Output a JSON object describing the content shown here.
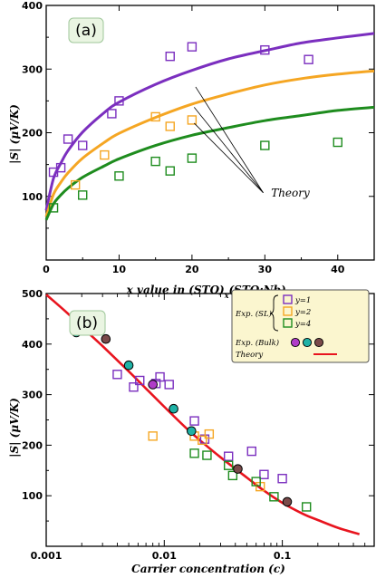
{
  "chart_data": [
    {
      "type": "scatter",
      "panel_label": "(a)",
      "xlabel": "x value in (STO)",
      "xlabel_sub_x": "x",
      "xlabel_mid": "(STO:Nb)",
      "xlabel_sub_y": "y",
      "ylabel": "|S| (μV/K)",
      "xlim": [
        0,
        45
      ],
      "ylim": [
        0,
        400
      ],
      "xticks": [
        "0",
        "10",
        "20",
        "30",
        "40"
      ],
      "xtick_values": [
        0,
        10,
        20,
        30,
        40
      ],
      "yticks": [
        "100",
        "200",
        "300",
        "400"
      ],
      "ytick_values": [
        100,
        200,
        300,
        400
      ],
      "annotation": "Theory",
      "annotation_pos": [
        33.5,
        100
      ],
      "annotation_targets": [
        [
          20.3,
          215
        ],
        [
          20.3,
          240
        ],
        [
          20.5,
          272
        ]
      ],
      "grid": false,
      "series": [
        {
          "color": "#7b2fbf",
          "points": [
            [
              1,
              138
            ],
            [
              2,
              145
            ],
            [
              3,
              190
            ],
            [
              5,
              180
            ],
            [
              9,
              230
            ],
            [
              10,
              250
            ],
            [
              17,
              320
            ],
            [
              20,
              335
            ],
            [
              30,
              330
            ],
            [
              36,
              315
            ]
          ],
          "curve": [
            [
              0,
              78
            ],
            [
              1,
              128
            ],
            [
              2,
              152
            ],
            [
              3,
              172
            ],
            [
              5,
              201
            ],
            [
              8,
              232
            ],
            [
              10,
              248
            ],
            [
              15,
              276
            ],
            [
              20,
              298
            ],
            [
              25,
              316
            ],
            [
              30,
              329
            ],
            [
              35,
              341
            ],
            [
              40,
              349
            ],
            [
              45,
              356
            ]
          ]
        },
        {
          "color": "#f5a623",
          "points": [
            [
              4,
              118
            ],
            [
              8,
              165
            ],
            [
              15,
              225
            ],
            [
              17,
              210
            ],
            [
              20,
              220
            ]
          ],
          "curve": [
            [
              0,
              68
            ],
            [
              1,
              103
            ],
            [
              2,
              122
            ],
            [
              3,
              137
            ],
            [
              5,
              160
            ],
            [
              8,
              185
            ],
            [
              10,
              199
            ],
            [
              15,
              224
            ],
            [
              20,
              245
            ],
            [
              25,
              261
            ],
            [
              30,
              275
            ],
            [
              35,
              285
            ],
            [
              40,
              292
            ],
            [
              45,
              297
            ]
          ]
        },
        {
          "color": "#1e8c1e",
          "points": [
            [
              1,
              82
            ],
            [
              5,
              102
            ],
            [
              10,
              132
            ],
            [
              15,
              155
            ],
            [
              17,
              140
            ],
            [
              20,
              160
            ],
            [
              30,
              180
            ],
            [
              40,
              185
            ]
          ],
          "curve": [
            [
              0,
              63
            ],
            [
              1,
              88
            ],
            [
              2,
              102
            ],
            [
              3,
              113
            ],
            [
              5,
              130
            ],
            [
              8,
              148
            ],
            [
              10,
              159
            ],
            [
              15,
              180
            ],
            [
              20,
              196
            ],
            [
              25,
              208
            ],
            [
              30,
              219
            ],
            [
              35,
              227
            ],
            [
              40,
              235
            ],
            [
              45,
              240
            ]
          ]
        }
      ]
    },
    {
      "type": "scatter",
      "panel_label": "(b)",
      "xscale": "log",
      "xlabel": "Carrier concentration (c)",
      "ylabel": "|S| (μV/K)",
      "xlim": [
        0.001,
        0.6
      ],
      "ylim": [
        0,
        500
      ],
      "xticks": [
        "0.001",
        "0.01",
        "0.1"
      ],
      "xtick_values": [
        0.001,
        0.01,
        0.1
      ],
      "yticks": [
        "100",
        "200",
        "300",
        "400",
        "500"
      ],
      "ytick_values": [
        100,
        200,
        300,
        400,
        500
      ],
      "grid": false,
      "legend": {
        "position": "top-right",
        "sl_label": "Exp. (SL)",
        "bulk_label": "Exp. (Bulk)",
        "theory_label": "Theory",
        "y_entries": [
          "y=1",
          "y=2",
          "y=4"
        ]
      },
      "sl_series": [
        {
          "name": "y=1",
          "color": "#7b2fbf",
          "points": [
            [
              0.004,
              340
            ],
            [
              0.0055,
              315
            ],
            [
              0.0062,
              328
            ],
            [
              0.0085,
              322
            ],
            [
              0.0092,
              335
            ],
            [
              0.011,
              320
            ],
            [
              0.018,
              248
            ],
            [
              0.022,
              212
            ],
            [
              0.035,
              178
            ],
            [
              0.055,
              188
            ],
            [
              0.07,
              142
            ],
            [
              0.1,
              134
            ]
          ]
        },
        {
          "name": "y=2",
          "color": "#f5a623",
          "points": [
            [
              0.008,
              218
            ],
            [
              0.018,
              218
            ],
            [
              0.021,
              210
            ],
            [
              0.024,
              222
            ],
            [
              0.065,
              118
            ]
          ]
        },
        {
          "name": "y=4",
          "color": "#1e8c1e",
          "points": [
            [
              0.018,
              184
            ],
            [
              0.023,
              180
            ],
            [
              0.035,
              160
            ],
            [
              0.038,
              140
            ],
            [
              0.06,
              128
            ],
            [
              0.085,
              98
            ],
            [
              0.16,
              78
            ]
          ]
        }
      ],
      "bulk_series": [
        {
          "color": "#1fb2a6",
          "points": [
            [
              0.0018,
              423
            ],
            [
              0.005,
              358
            ],
            [
              0.012,
              272
            ],
            [
              0.017,
              228
            ]
          ]
        },
        {
          "color": "#b03cc8",
          "points": [
            [
              0.008,
              320
            ]
          ]
        },
        {
          "color": "#7a4a4a",
          "points": [
            [
              0.0032,
              410
            ],
            [
              0.042,
              153
            ],
            [
              0.11,
              88
            ]
          ]
        }
      ],
      "theory_color": "#e8141e",
      "theory_curve": [
        [
          0.001,
          498
        ],
        [
          0.0015,
          462
        ],
        [
          0.002,
          434
        ],
        [
          0.003,
          396
        ],
        [
          0.005,
          346
        ],
        [
          0.007,
          312
        ],
        [
          0.01,
          276
        ],
        [
          0.015,
          236
        ],
        [
          0.02,
          210
        ],
        [
          0.03,
          176
        ],
        [
          0.05,
          136
        ],
        [
          0.07,
          110
        ],
        [
          0.1,
          86
        ],
        [
          0.15,
          64
        ],
        [
          0.2,
          52
        ],
        [
          0.3,
          36
        ],
        [
          0.45,
          24
        ]
      ]
    }
  ]
}
